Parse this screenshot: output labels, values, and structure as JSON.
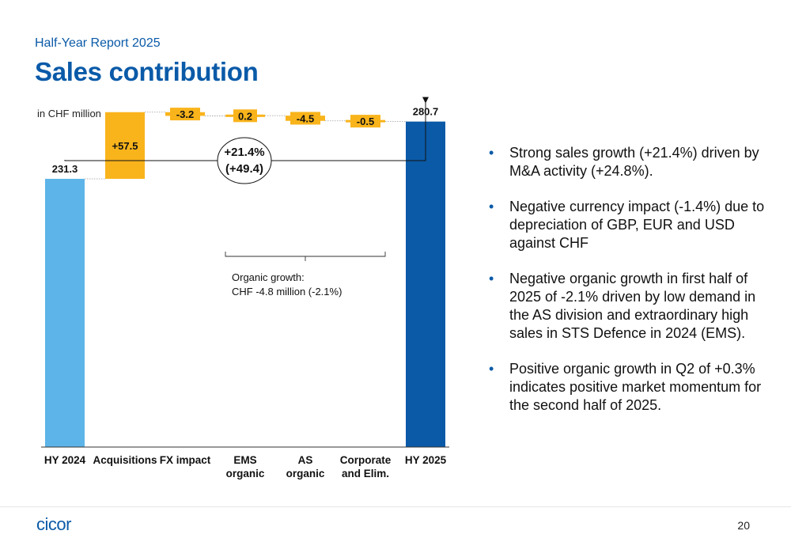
{
  "header": {
    "subtitle": "Half-Year Report 2025",
    "title": "Sales contribution",
    "unit": "in CHF million"
  },
  "chart_data": {
    "type": "bar",
    "subtype": "waterfall",
    "categories": [
      [
        "HY 2024"
      ],
      [
        "Acquisitions"
      ],
      [
        "FX impact"
      ],
      [
        "EMS",
        "organic"
      ],
      [
        "AS",
        "organic"
      ],
      [
        "Corporate",
        "and Elim."
      ],
      [
        "HY 2025"
      ]
    ],
    "values": [
      231.3,
      57.5,
      -3.2,
      0.2,
      -4.5,
      -0.5,
      280.7
    ],
    "labels": [
      "231.3",
      "+57.5",
      "-3.2",
      "0.2",
      "-4.5",
      "-0.5",
      "280.7"
    ],
    "kinds": [
      "total",
      "delta",
      "delta",
      "delta",
      "delta",
      "delta",
      "total"
    ],
    "ylim": [
      0,
      290
    ],
    "colors": {
      "hy2024": "#5db4e8",
      "delta": "#f9b41b",
      "hy2025": "#0a5aa8"
    },
    "growth_annotation": {
      "line1": "+21.4%",
      "line2": "(+49.4)"
    },
    "organic_annotation": {
      "line1": "Organic growth:",
      "line2": "CHF  -4.8  million (-2.1%)"
    }
  },
  "bullets": [
    "Strong sales growth (+21.4%) driven by M&A activity (+24.8%).",
    "Negative currency impact (-1.4%) due to depreciation of GBP, EUR and USD against CHF",
    "Negative organic growth in first half of 2025 of -2.1% driven by low demand in the AS division and extraordinary high sales in STS Defence in 2024 (EMS).",
    "Positive organic growth in Q2 of +0.3% indicates positive market momentum for the second half of 2025."
  ],
  "bullet_symbol": "•",
  "footer": {
    "logo": "cicor",
    "page": "20"
  }
}
